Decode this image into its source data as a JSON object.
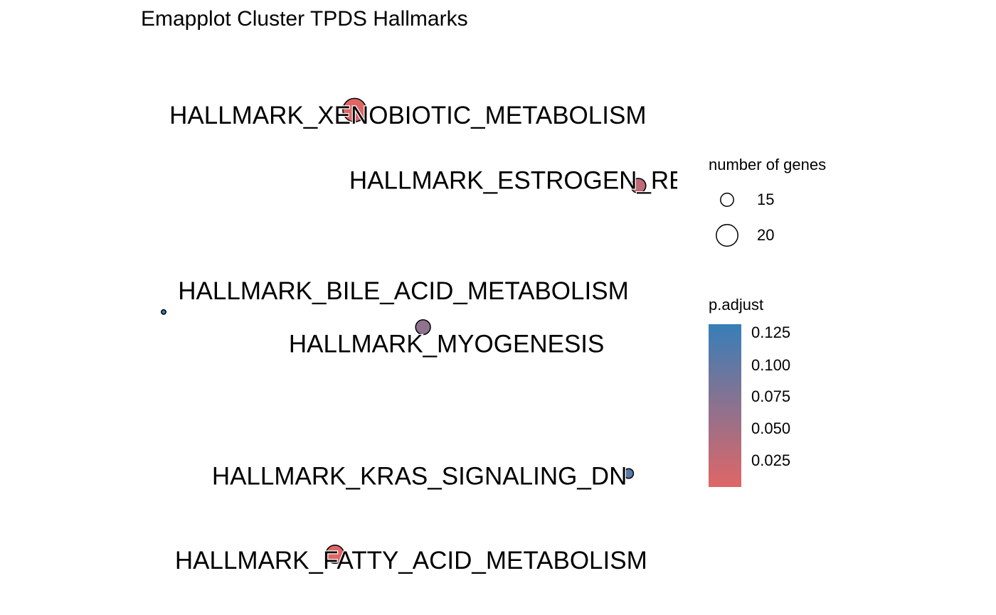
{
  "chart_data": {
    "type": "network",
    "title": "Emapplot Cluster TPDS Hallmarks",
    "nodes": [
      {
        "label": "HALLMARK_XENOBIOTIC_METABOLISM",
        "x": 0.39,
        "y": 0.92,
        "size": 21,
        "p_adjust": 0.003
      },
      {
        "label": "HALLMARK_ESTROGEN_RESPONSE_LATE",
        "x": 0.97,
        "y": 0.77,
        "size": 16,
        "p_adjust": 0.03
      },
      {
        "label": "HALLMARK_BILE_ACID_METABOLISM",
        "x": 0.0,
        "y": 0.52,
        "size": 10,
        "p_adjust": 0.13
      },
      {
        "label": "HALLMARK_MYOGENESIS",
        "x": 0.53,
        "y": 0.49,
        "size": 16,
        "p_adjust": 0.065
      },
      {
        "label": "HALLMARK_KRAS_SIGNALING_DN",
        "x": 0.95,
        "y": 0.2,
        "size": 13,
        "p_adjust": 0.105
      },
      {
        "label": "HALLMARK_FATTY_ACID_METABOLISM",
        "x": 0.35,
        "y": 0.04,
        "size": 18,
        "p_adjust": 0.003
      }
    ],
    "legend_size": {
      "title": "number of genes",
      "entries": [
        {
          "label": "15",
          "value": 15
        },
        {
          "label": "20",
          "value": 20
        }
      ]
    },
    "legend_color": {
      "title": "p.adjust",
      "ticks": [
        {
          "label": "0.125",
          "value": 0.125
        },
        {
          "label": "0.100",
          "value": 0.1
        },
        {
          "label": "0.075",
          "value": 0.075
        },
        {
          "label": "0.050",
          "value": 0.05
        },
        {
          "label": "0.025",
          "value": 0.025
        }
      ],
      "range": [
        0.003,
        0.131
      ],
      "low_color": "#E06666",
      "high_color": "#377EB8"
    }
  }
}
